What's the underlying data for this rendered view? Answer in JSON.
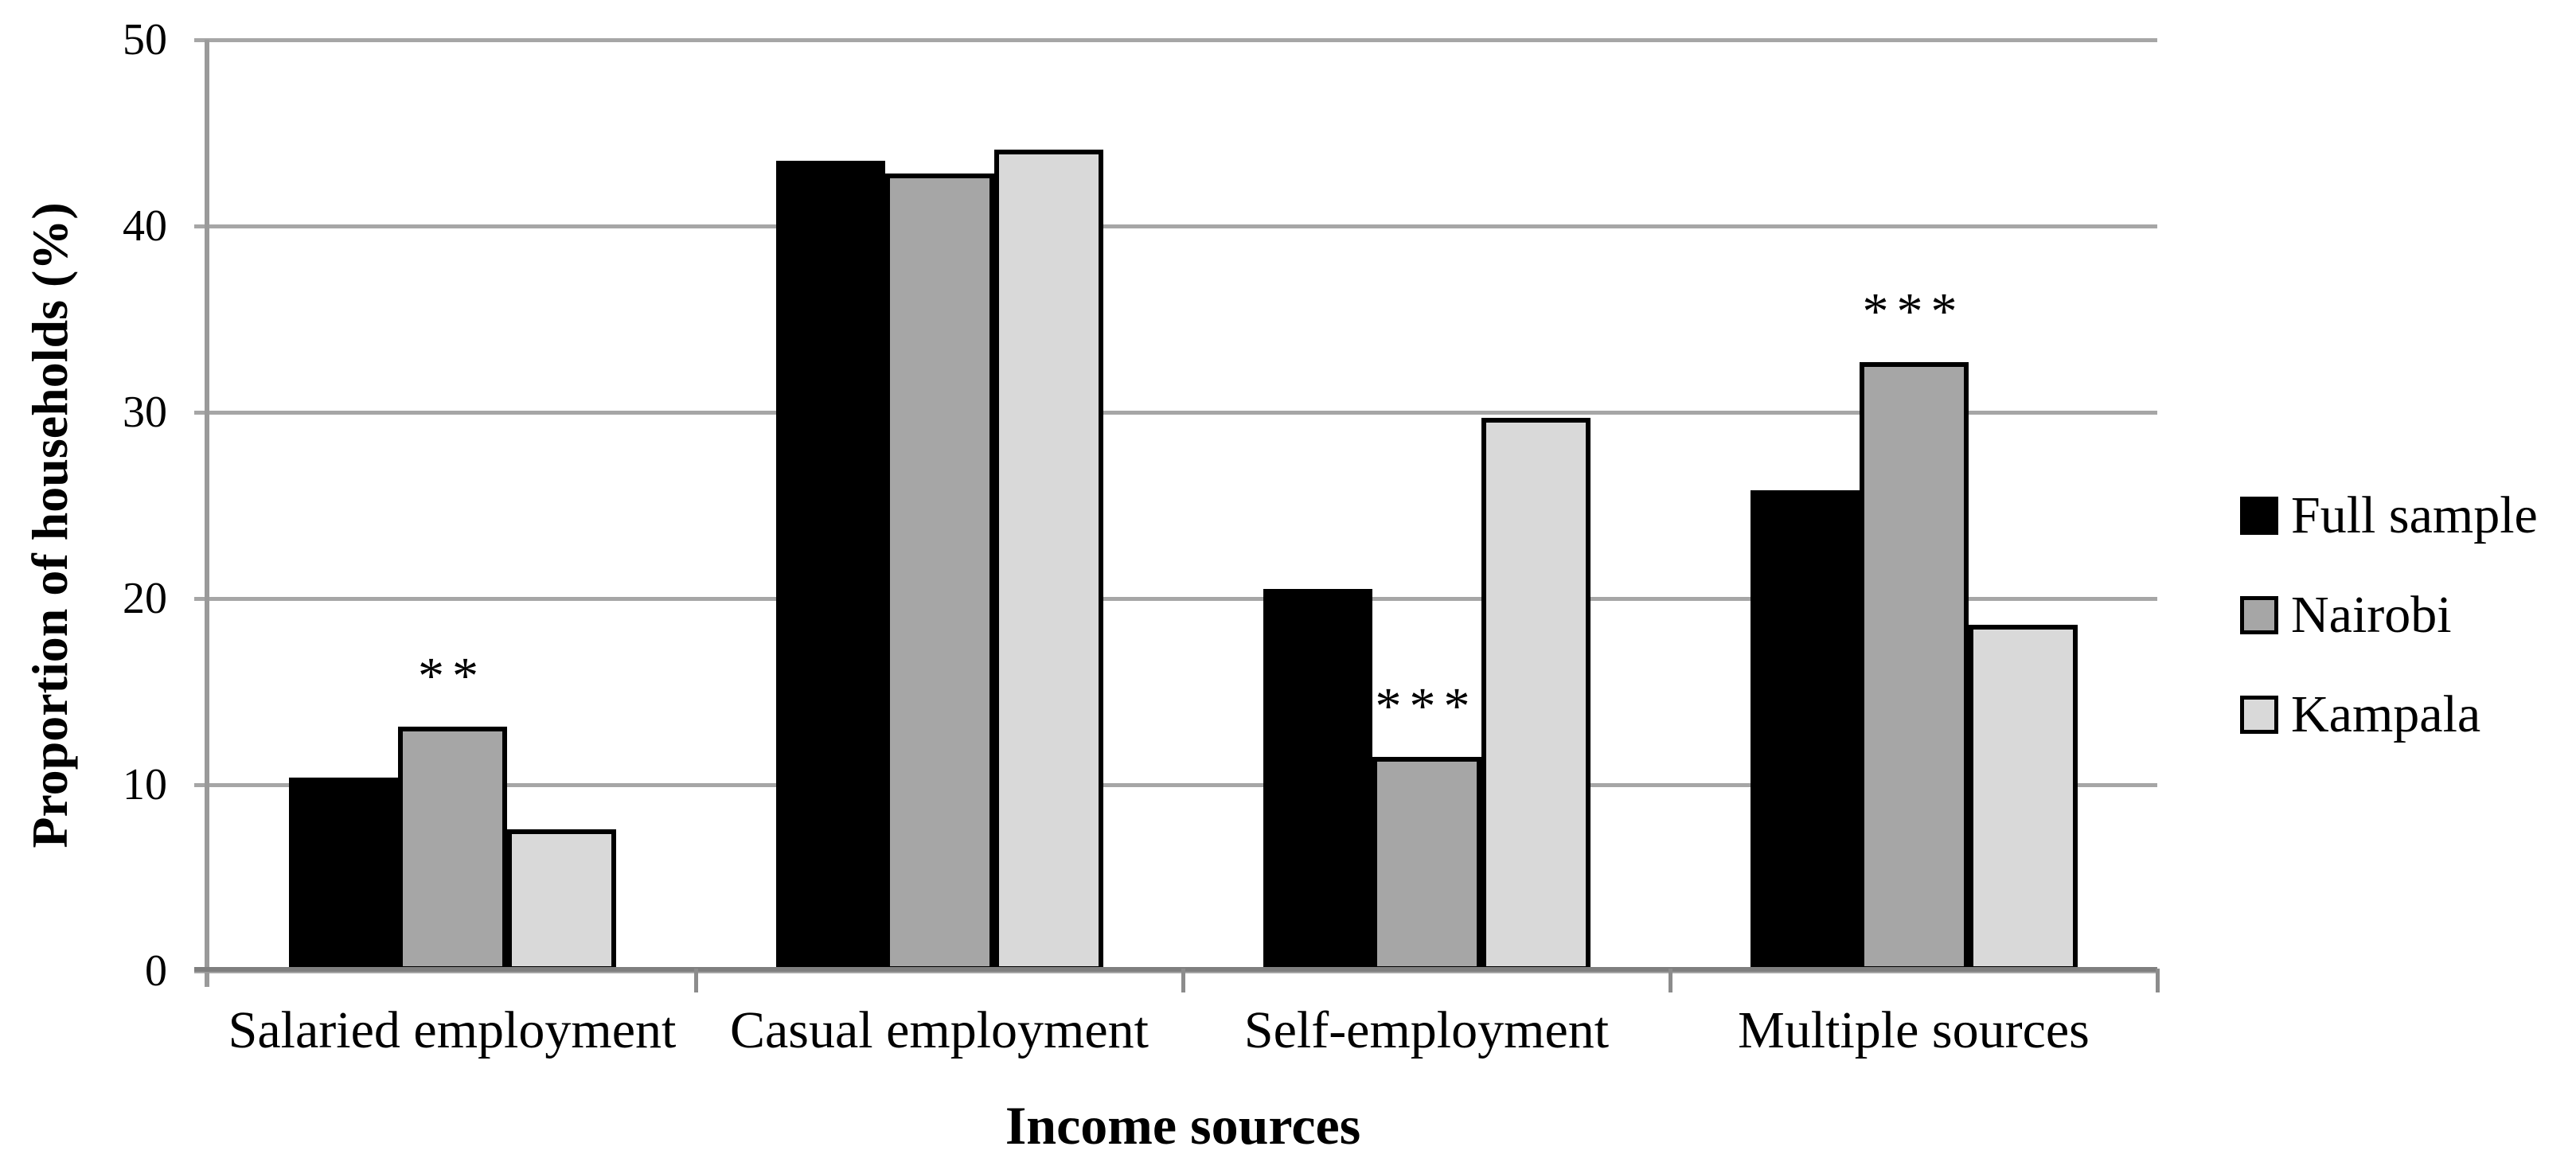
{
  "page": {
    "background": "#ffffff"
  },
  "chart_data": {
    "type": "bar",
    "title": "",
    "xlabel": "Income sources",
    "ylabel": "Proportion of households (%)",
    "ylim": [
      0,
      50
    ],
    "yticks": [
      "0",
      "10",
      "20",
      "30",
      "40",
      "50"
    ],
    "grid": true,
    "grid_color": "#a6a6a6",
    "axis_color": "#8c8c8c",
    "legend_position": "right",
    "categories": [
      "Salaried employment",
      "Casual employment",
      "Self-employment",
      "Multiple sources"
    ],
    "series": [
      {
        "name": "Full sample",
        "color": "#000000",
        "values": [
          10.4,
          43.5,
          20.5,
          25.8
        ]
      },
      {
        "name": "Nairobi",
        "color": "#a6a6a6",
        "values": [
          13.1,
          42.8,
          11.5,
          32.7
        ]
      },
      {
        "name": "Kampala",
        "color": "#d9d9d9",
        "values": [
          7.6,
          44.1,
          29.7,
          18.6
        ]
      }
    ],
    "annotations": [
      {
        "category_index": 0,
        "above_series": "Nairobi",
        "text": "**"
      },
      {
        "category_index": 2,
        "above_series": "Nairobi",
        "text": "***"
      },
      {
        "category_index": 3,
        "above_series": "Nairobi",
        "text": "***"
      }
    ]
  }
}
